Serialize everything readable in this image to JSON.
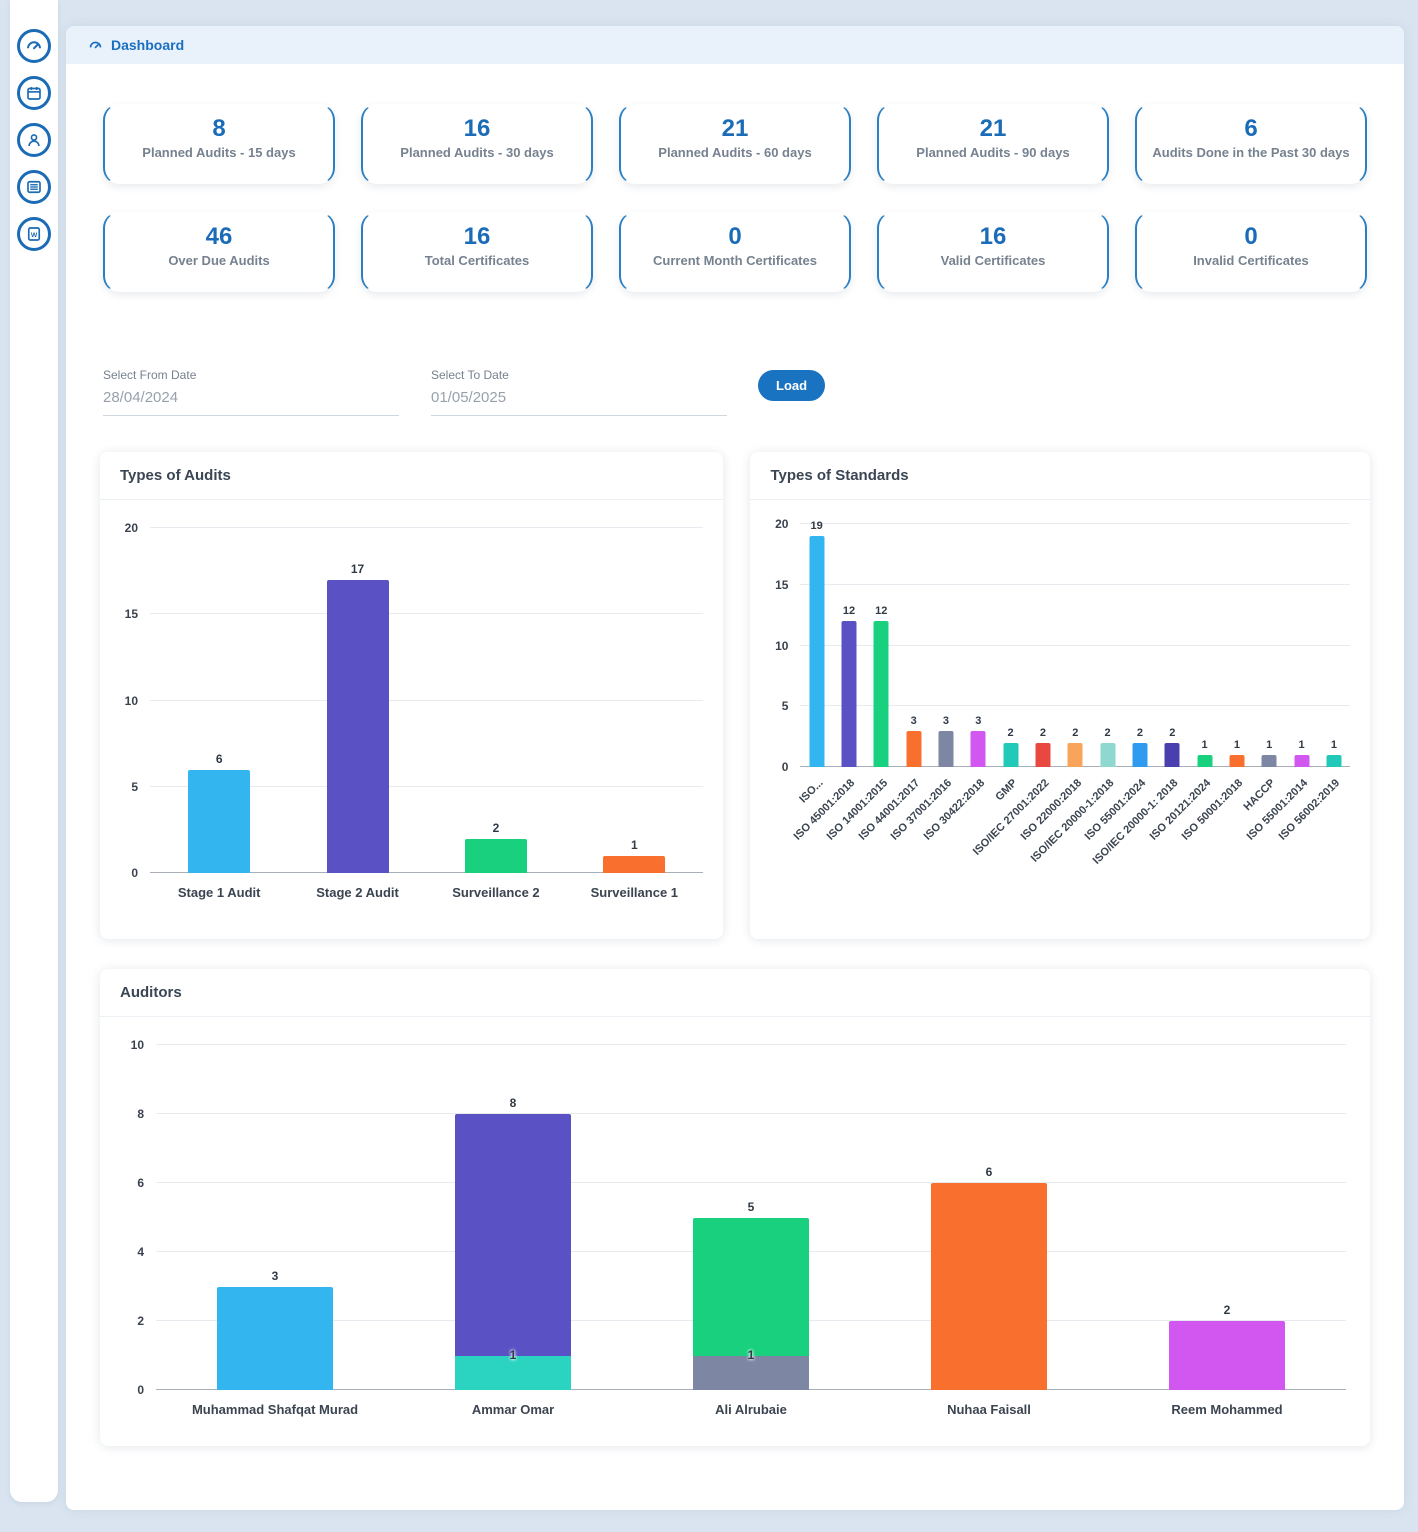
{
  "header": {
    "title": "Dashboard"
  },
  "sidebar": {
    "icons": [
      "dashboard",
      "calendar",
      "user",
      "records",
      "word-report"
    ]
  },
  "stats": {
    "cards": [
      {
        "value": "8",
        "label": "Planned Audits - 15 days"
      },
      {
        "value": "16",
        "label": "Planned Audits - 30 days"
      },
      {
        "value": "21",
        "label": "Planned Audits - 60 days"
      },
      {
        "value": "21",
        "label": "Planned Audits - 90 days"
      },
      {
        "value": "6",
        "label": "Audits Done in the Past 30 days"
      },
      {
        "value": "46",
        "label": "Over Due Audits"
      },
      {
        "value": "16",
        "label": "Total Certificates"
      },
      {
        "value": "0",
        "label": "Current Month Certificates"
      },
      {
        "value": "16",
        "label": "Valid Certificates"
      },
      {
        "value": "0",
        "label": "Invalid Certificates"
      }
    ]
  },
  "filters": {
    "from_label": "Select From Date",
    "from_value": "28/04/2024",
    "to_label": "Select To Date",
    "to_value": "01/05/2025",
    "load_label": "Load"
  },
  "chart_data": [
    {
      "type": "bar",
      "title": "Types of Audits",
      "ylim": [
        0,
        20
      ],
      "yticks": [
        0,
        5,
        10,
        15,
        20
      ],
      "bars": [
        {
          "category": "Stage 1 Audit",
          "total": 6,
          "segments": [
            {
              "value": 6,
              "color": "#33b5f0"
            }
          ]
        },
        {
          "category": "Stage 2 Audit",
          "total": 17,
          "segments": [
            {
              "value": 17,
              "color": "#5a52c4"
            }
          ]
        },
        {
          "category": "Surveillance 2",
          "total": 2,
          "segments": [
            {
              "value": 2,
              "color": "#19d07e"
            }
          ]
        },
        {
          "category": "Surveillance 1",
          "total": 1,
          "segments": [
            {
              "value": 1,
              "color": "#f9702e"
            }
          ]
        }
      ]
    },
    {
      "type": "bar",
      "title": "Types of Standards",
      "ylim": [
        0,
        20
      ],
      "yticks": [
        0,
        5,
        10,
        15,
        20
      ],
      "bars": [
        {
          "category": "ISO...",
          "total": 19,
          "segments": [
            {
              "value": 19,
              "color": "#33b5f0"
            }
          ]
        },
        {
          "category": "ISO 45001:2018",
          "total": 12,
          "segments": [
            {
              "value": 12,
              "color": "#5a52c4"
            }
          ]
        },
        {
          "category": "ISO 14001:2015",
          "total": 12,
          "segments": [
            {
              "value": 12,
              "color": "#19d07e"
            }
          ]
        },
        {
          "category": "ISO 44001:2017",
          "total": 3,
          "segments": [
            {
              "value": 3,
              "color": "#f9702e"
            }
          ]
        },
        {
          "category": "ISO 37001:2016",
          "total": 3,
          "segments": [
            {
              "value": 3,
              "color": "#7d87a3"
            }
          ]
        },
        {
          "category": "ISO 30422:2018",
          "total": 3,
          "segments": [
            {
              "value": 3,
              "color": "#d157f0"
            }
          ]
        },
        {
          "category": "GMP",
          "total": 2,
          "segments": [
            {
              "value": 2,
              "color": "#20c9b8"
            }
          ]
        },
        {
          "category": "ISO/IEC 27001:2022",
          "total": 2,
          "segments": [
            {
              "value": 2,
              "color": "#e8483f"
            }
          ]
        },
        {
          "category": "ISO 22000:2018",
          "total": 2,
          "segments": [
            {
              "value": 2,
              "color": "#f9a45b"
            }
          ]
        },
        {
          "category": "ISO/IEC 20000-1:2018",
          "total": 2,
          "segments": [
            {
              "value": 2,
              "color": "#8fd8cf"
            }
          ]
        },
        {
          "category": "ISO 55001:2024",
          "total": 2,
          "segments": [
            {
              "value": 2,
              "color": "#2f9bf0"
            }
          ]
        },
        {
          "category": "ISO/IEC 20000-1: 2018",
          "total": 2,
          "segments": [
            {
              "value": 2,
              "color": "#4a3fae"
            }
          ]
        },
        {
          "category": "ISO 20121:2024",
          "total": 1,
          "segments": [
            {
              "value": 1,
              "color": "#19d07e"
            }
          ]
        },
        {
          "category": "ISO 50001:2018",
          "total": 1,
          "segments": [
            {
              "value": 1,
              "color": "#f9702e"
            }
          ]
        },
        {
          "category": "HACCP",
          "total": 1,
          "segments": [
            {
              "value": 1,
              "color": "#7d87a3"
            }
          ]
        },
        {
          "category": "ISO 55001:2014",
          "total": 1,
          "segments": [
            {
              "value": 1,
              "color": "#d157f0"
            }
          ]
        },
        {
          "category": "ISO 56002:2019",
          "total": 1,
          "segments": [
            {
              "value": 1,
              "color": "#20c9b8"
            }
          ]
        }
      ]
    },
    {
      "type": "bar",
      "title": "Auditors",
      "ylim": [
        0,
        10
      ],
      "yticks": [
        0,
        2,
        4,
        6,
        8,
        10
      ],
      "bars": [
        {
          "category": "Muhammad Shafqat Murad",
          "total": 3,
          "segments": [
            {
              "value": 3,
              "color": "#33b5f0"
            }
          ]
        },
        {
          "category": "Ammar Omar",
          "total": 8,
          "segments": [
            {
              "value": 1,
              "color": "#2bd4c0",
              "label": "1"
            },
            {
              "value": 7,
              "color": "#5a52c4"
            }
          ]
        },
        {
          "category": "Ali Alrubaie",
          "total": 5,
          "segments": [
            {
              "value": 1,
              "color": "#7d87a3",
              "label": "1"
            },
            {
              "value": 4,
              "color": "#19d07e"
            }
          ]
        },
        {
          "category": "Nuhaa Faisall",
          "total": 6,
          "segments": [
            {
              "value": 6,
              "color": "#f9702e"
            }
          ]
        },
        {
          "category": "Reem Mohammed",
          "total": 2,
          "segments": [
            {
              "value": 2,
              "color": "#d157f0"
            }
          ]
        }
      ]
    }
  ]
}
